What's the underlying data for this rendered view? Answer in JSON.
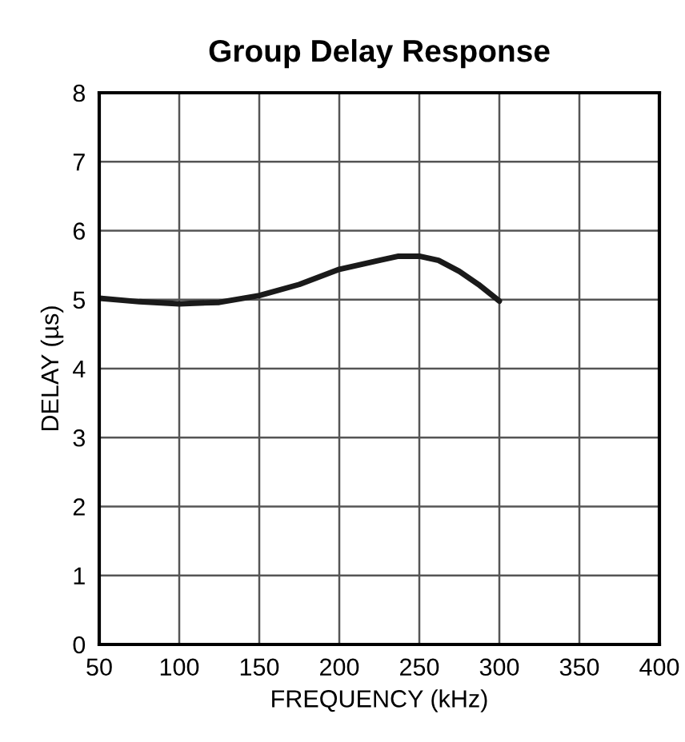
{
  "chart_data": {
    "type": "line",
    "title": "Group Delay Response",
    "xlabel": "FREQUENCY (kHz)",
    "ylabel": "DELAY (µs)",
    "x": [
      50,
      75,
      100,
      125,
      150,
      175,
      200,
      225,
      237,
      250,
      262,
      275,
      287,
      300
    ],
    "series": [
      {
        "color": "#1a1a1a",
        "values": [
          5.02,
          4.97,
          4.94,
          4.96,
          5.06,
          5.22,
          5.44,
          5.57,
          5.63,
          5.63,
          5.57,
          5.41,
          5.22,
          4.98
        ]
      }
    ],
    "xlim": [
      50,
      400
    ],
    "xticks": [
      50,
      100,
      150,
      200,
      250,
      300,
      350,
      400
    ],
    "ylim": [
      0,
      8
    ],
    "yticks": [
      0,
      1,
      2,
      3,
      4,
      5,
      6,
      7,
      8
    ],
    "grid": true,
    "marker": "none",
    "line_style": "solid"
  }
}
